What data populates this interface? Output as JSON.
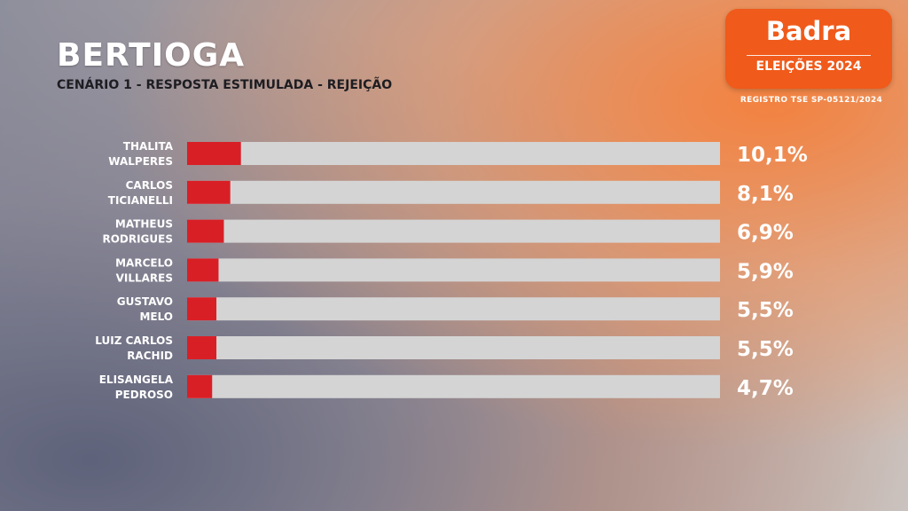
{
  "header": {
    "title": "BERTIOGA",
    "subtitle": "CENÁRIO 1 - RESPOSTA ESTIMULADA - REJEIÇÃO"
  },
  "brand": {
    "name": "Badra",
    "edition": "ELEIÇÕES 2024",
    "registro": "REGISTRO TSE SP-05121/2024"
  },
  "colors": {
    "bar_fill": "#d91f26",
    "bar_track": "#d4d4d4",
    "brand": "#f05a1a"
  },
  "chart_data": {
    "type": "bar",
    "orientation": "horizontal",
    "xlim": [
      0,
      100
    ],
    "categories": [
      [
        "THALITA",
        "WALPERES"
      ],
      [
        "CARLOS",
        "TICIANELLI"
      ],
      [
        "MATHEUS",
        "RODRIGUES"
      ],
      [
        "MARCELO",
        "VILLARES"
      ],
      [
        "GUSTAVO",
        "MELO"
      ],
      [
        "LUIZ CARLOS",
        "RACHID"
      ],
      [
        "ELISANGELA",
        "PEDROSO"
      ]
    ],
    "values": [
      10.1,
      8.1,
      6.9,
      5.9,
      5.5,
      5.5,
      4.7
    ],
    "value_labels": [
      "10,1%",
      "8,1%",
      "6,9%",
      "5,9%",
      "5,5%",
      "5,5%",
      "4,7%"
    ]
  }
}
